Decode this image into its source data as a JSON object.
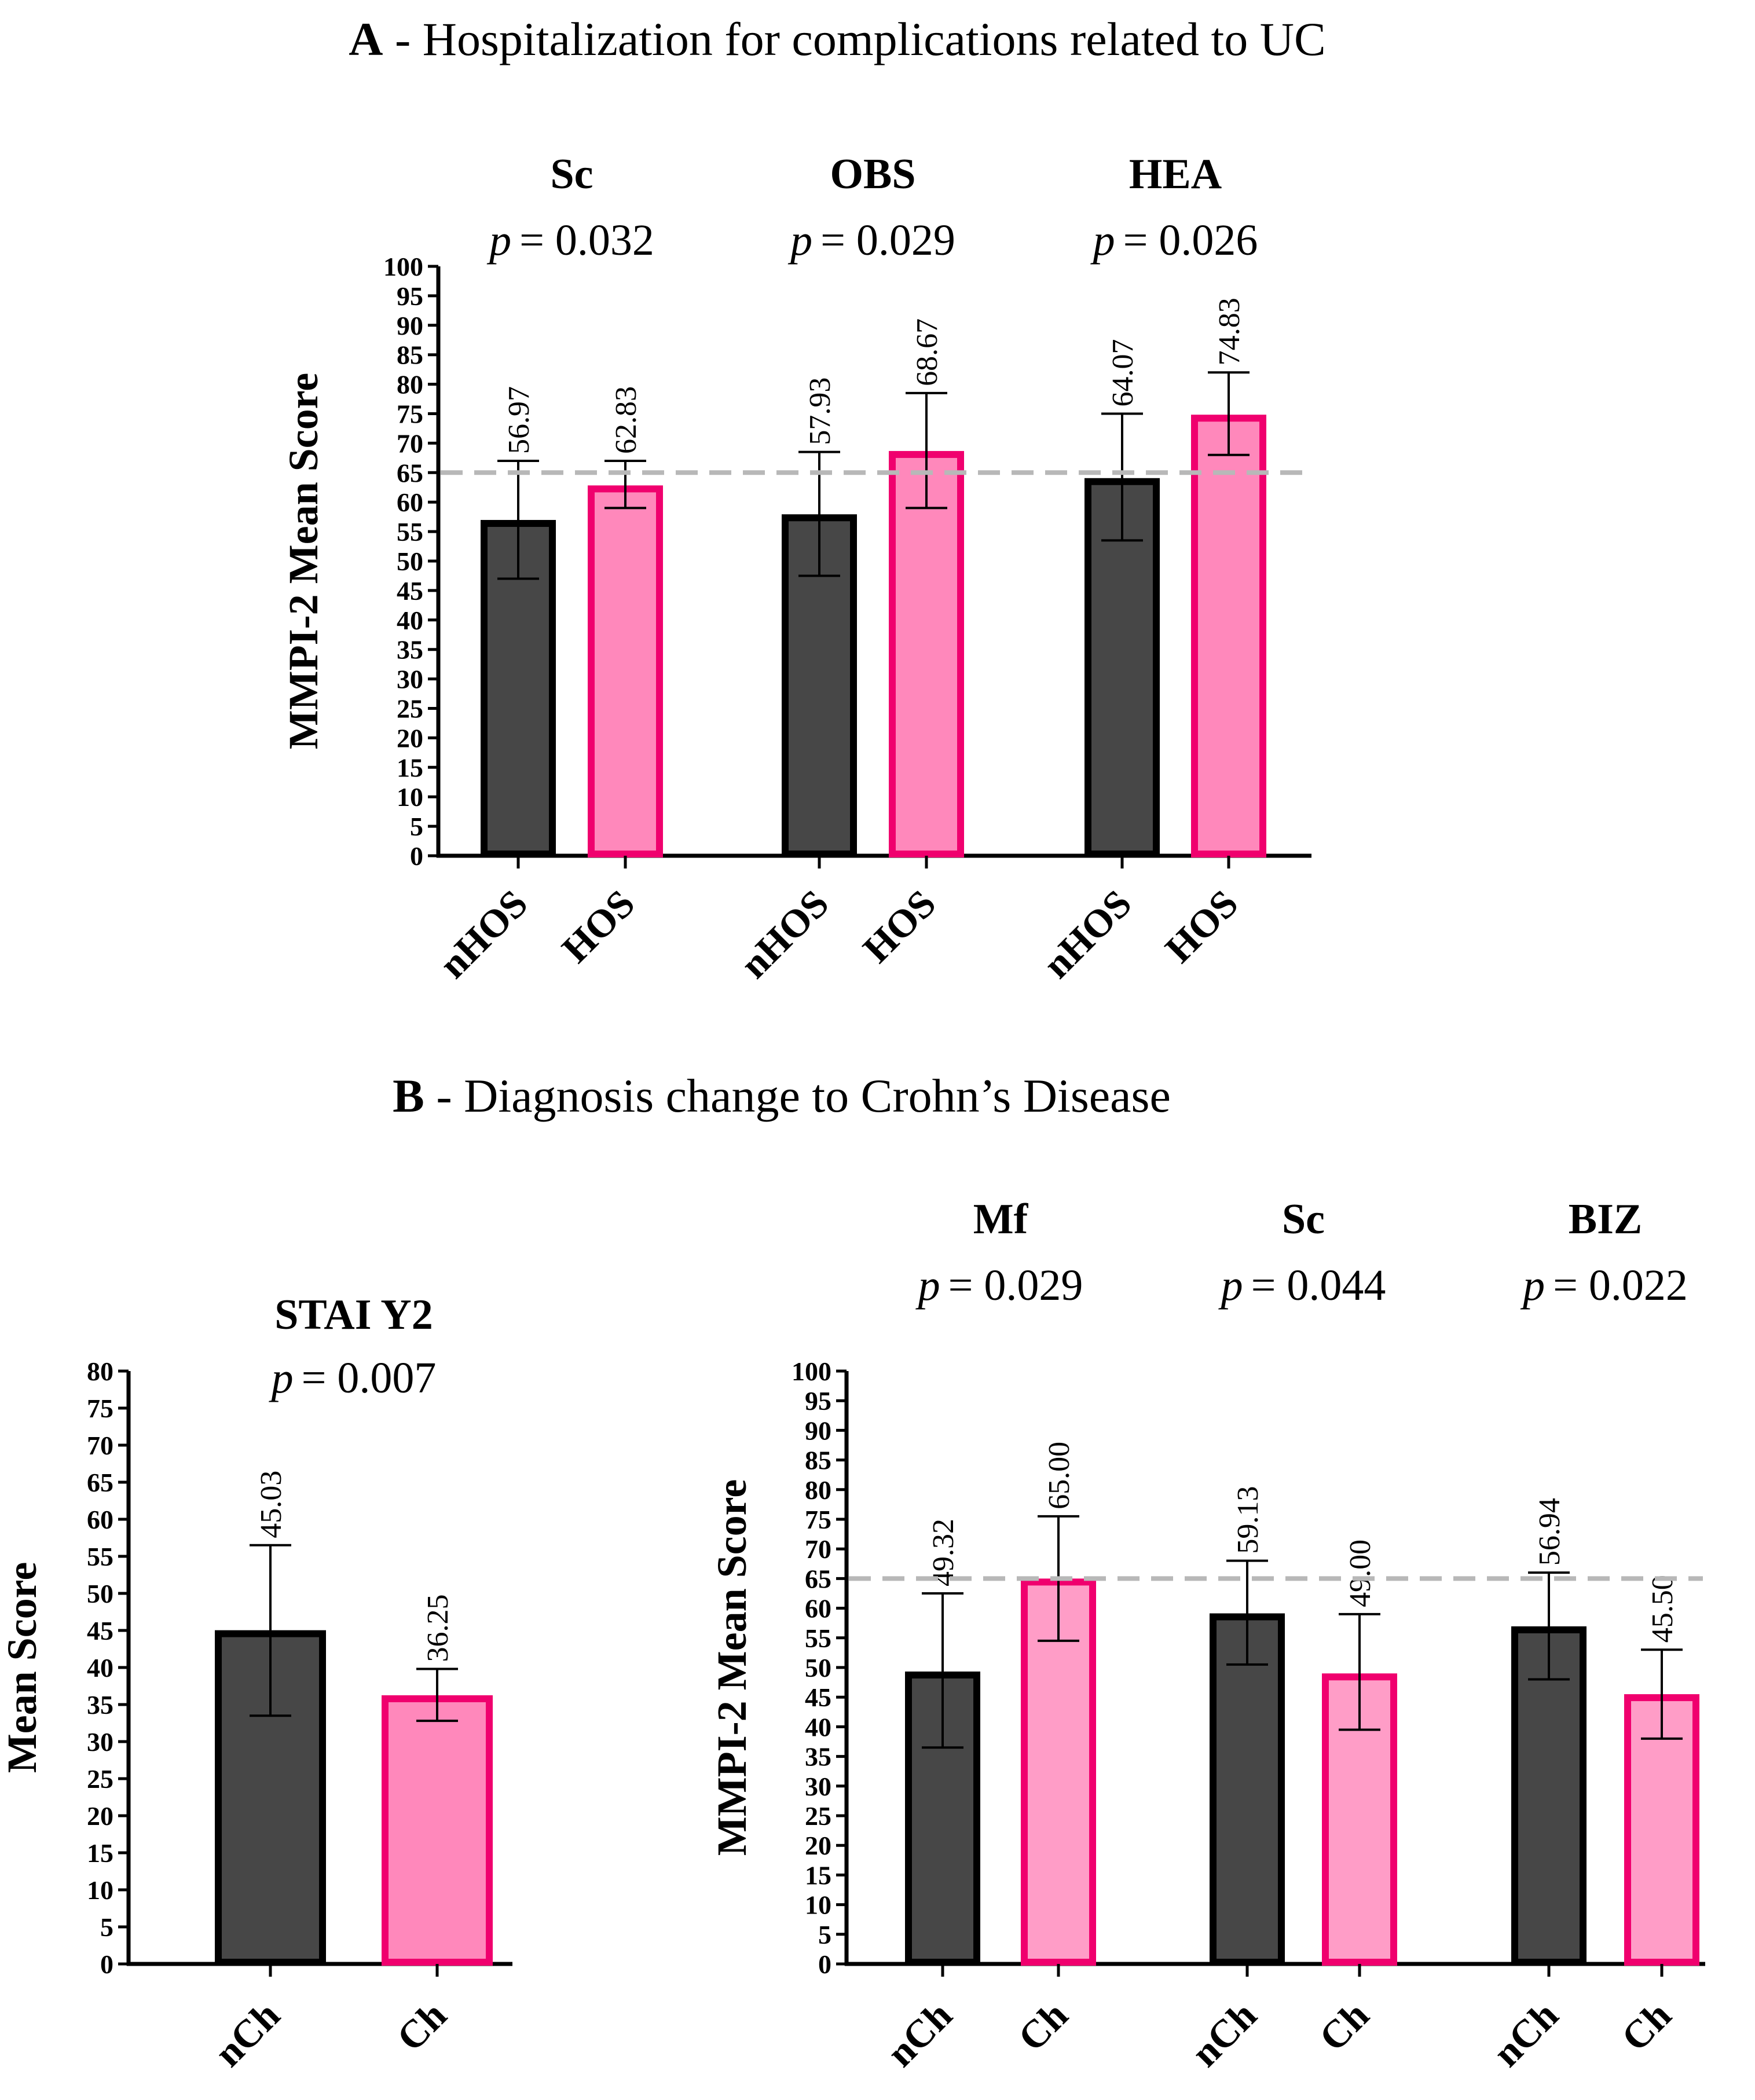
{
  "figure": {
    "section_a": {
      "letter": "A",
      "title": " - Hospitalization for complications related to UC"
    },
    "section_b": {
      "letter": "B",
      "title": " - Diagnosis change to Crohn’s Disease"
    }
  },
  "colors": {
    "dark_fill": "#474747",
    "dark_stroke": "#000000",
    "pink_fill": "#ff88bb",
    "pink_fill_light": "#ff9dc7",
    "pink_stroke": "#f0006e",
    "threshold": "#b8b8b8"
  },
  "chart_data": [
    {
      "id": "A",
      "type": "bar",
      "ylabel": "MMPI-2 Mean Score",
      "ylim": [
        0,
        100
      ],
      "ytick_step": 5,
      "reference_line": 65,
      "groups": [
        {
          "title": "Sc",
          "p_text": "p",
          "p_value": "= 0.032",
          "bars": [
            {
              "category": "nHOS",
              "value": 56.97,
              "label": "56.97",
              "err_low": 47,
              "err_high": 67,
              "style": "dark"
            },
            {
              "category": "HOS",
              "value": 62.83,
              "label": "62.83",
              "err_low": 59,
              "err_high": 67,
              "style": "pink"
            }
          ]
        },
        {
          "title": "OBS",
          "p_text": "p",
          "p_value": "= 0.029",
          "bars": [
            {
              "category": "nHOS",
              "value": 57.93,
              "label": "57.93",
              "err_low": 47.5,
              "err_high": 68.5,
              "style": "dark"
            },
            {
              "category": "HOS",
              "value": 68.67,
              "label": "68.67",
              "err_low": 59,
              "err_high": 78.5,
              "style": "pink"
            }
          ]
        },
        {
          "title": "HEA",
          "p_text": "p",
          "p_value": "= 0.026",
          "bars": [
            {
              "category": "nHOS",
              "value": 64.07,
              "label": "64.07",
              "err_low": 53.5,
              "err_high": 75,
              "style": "dark"
            },
            {
              "category": "HOS",
              "value": 74.83,
              "label": "74.83",
              "err_low": 68,
              "err_high": 82,
              "style": "pink"
            }
          ]
        }
      ]
    },
    {
      "id": "B1",
      "type": "bar",
      "ylabel": "Mean Score",
      "ylim": [
        0,
        80
      ],
      "ytick_step": 5,
      "reference_line": null,
      "groups": [
        {
          "title": "STAI Y2",
          "p_text": "p",
          "p_value": "= 0.007",
          "bars": [
            {
              "category": "nCh",
              "value": 45.03,
              "label": "45.03",
              "err_low": 33.5,
              "err_high": 56.5,
              "style": "dark"
            },
            {
              "category": "Ch",
              "value": 36.25,
              "label": "36.25",
              "err_low": 32.8,
              "err_high": 39.8,
              "style": "pink"
            }
          ]
        }
      ]
    },
    {
      "id": "B2",
      "type": "bar",
      "ylabel": "MMPI-2 Mean Score",
      "ylim": [
        0,
        100
      ],
      "ytick_step": 5,
      "reference_line": 65,
      "groups": [
        {
          "title": "Mf",
          "p_text": "p",
          "p_value": "= 0.029",
          "bars": [
            {
              "category": "nCh",
              "value": 49.32,
              "label": "49.32",
              "err_low": 36.5,
              "err_high": 62.5,
              "style": "dark"
            },
            {
              "category": "Ch",
              "value": 65.0,
              "label": "65.00",
              "err_low": 54.5,
              "err_high": 75.5,
              "style": "pink_light"
            }
          ]
        },
        {
          "title": "Sc",
          "p_text": "p",
          "p_value": "= 0.044",
          "bars": [
            {
              "category": "nCh",
              "value": 59.13,
              "label": "59.13",
              "err_low": 50.5,
              "err_high": 68,
              "style": "dark"
            },
            {
              "category": "Ch",
              "value": 49.0,
              "label": "49.00",
              "err_low": 39.5,
              "err_high": 59,
              "style": "pink_light"
            }
          ]
        },
        {
          "title": "BIZ",
          "p_text": "p",
          "p_value": "= 0.022",
          "bars": [
            {
              "category": "nCh",
              "value": 56.94,
              "label": "56.94",
              "err_low": 48,
              "err_high": 66,
              "style": "dark"
            },
            {
              "category": "Ch",
              "value": 45.5,
              "label": "45.50",
              "err_low": 38,
              "err_high": 53,
              "style": "pink_light"
            }
          ]
        }
      ]
    }
  ]
}
